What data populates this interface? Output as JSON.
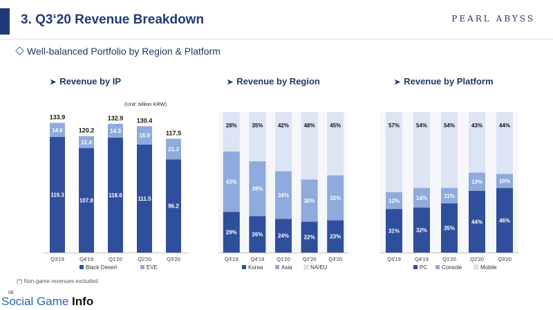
{
  "header": {
    "title": "3. Q3‘20 Revenue Breakdown",
    "brand": "PEARL ABYSS",
    "accent_color": "#1f3a78"
  },
  "subtitle": "Well-balanced Portfolio by Region & Platform",
  "panels": {
    "ip": {
      "title": "Revenue by IP",
      "unit": "(Unit: billion KRW)"
    },
    "region": {
      "title": "Revenue by Region"
    },
    "platform": {
      "title": "Revenue by Platform"
    }
  },
  "footnote": "(*) Non-game revenues excluded",
  "watermark": {
    "page": "06",
    "text_a": "Social Game ",
    "text_b": "Info"
  },
  "chart_data": [
    {
      "type": "bar",
      "stacked": true,
      "categories": [
        "Q3'19",
        "Q4'19",
        "Q1'20",
        "Q2'20",
        "Q3'20"
      ],
      "series": [
        {
          "name": "Black Desert",
          "values": [
            119.3,
            107.8,
            118.6,
            111.5,
            96.2
          ],
          "color": "#2f4f9c",
          "label_color": "#ffffff"
        },
        {
          "name": "EVE",
          "values": [
            14.6,
            12.4,
            14.3,
            18.9,
            21.3
          ],
          "color": "#8faadc",
          "label_color": "#ffffff"
        }
      ],
      "totals": [
        "133.9",
        "120.2",
        "132.9",
        "130.4",
        "117.5"
      ],
      "ylim": [
        0,
        145
      ],
      "legend": "bottom"
    },
    {
      "type": "bar",
      "stacked": true,
      "percent": true,
      "categories": [
        "Q3'19",
        "Q4'19",
        "Q1'20",
        "Q2'20",
        "Q3'20"
      ],
      "series": [
        {
          "name": "Korea",
          "values": [
            29,
            26,
            24,
            22,
            23
          ],
          "color": "#2f4f9c",
          "label_color": "#ffffff"
        },
        {
          "name": "Asia",
          "values": [
            43,
            39,
            34,
            30,
            32
          ],
          "color": "#8faadc",
          "label_color": "#ffffff"
        },
        {
          "name": "NA/EU",
          "values": [
            28,
            35,
            42,
            48,
            45
          ],
          "color": "#dde4f4",
          "label_color": "#111111"
        }
      ],
      "ylim": [
        0,
        100
      ],
      "legend": "bottom"
    },
    {
      "type": "bar",
      "stacked": true,
      "percent": true,
      "categories": [
        "Q3'19",
        "Q4'19",
        "Q1'20",
        "Q2'20",
        "Q3'20"
      ],
      "series": [
        {
          "name": "PC",
          "values": [
            31,
            32,
            35,
            44,
            46
          ],
          "color": "#2f4f9c",
          "label_color": "#ffffff"
        },
        {
          "name": "Console",
          "values": [
            12,
            14,
            11,
            13,
            10
          ],
          "color": "#8faadc",
          "label_color": "#ffffff"
        },
        {
          "name": "Mobile",
          "values": [
            57,
            54,
            54,
            43,
            44
          ],
          "color": "#dde4f4",
          "label_color": "#111111"
        }
      ],
      "ylim": [
        0,
        100
      ],
      "legend": "bottom"
    }
  ]
}
